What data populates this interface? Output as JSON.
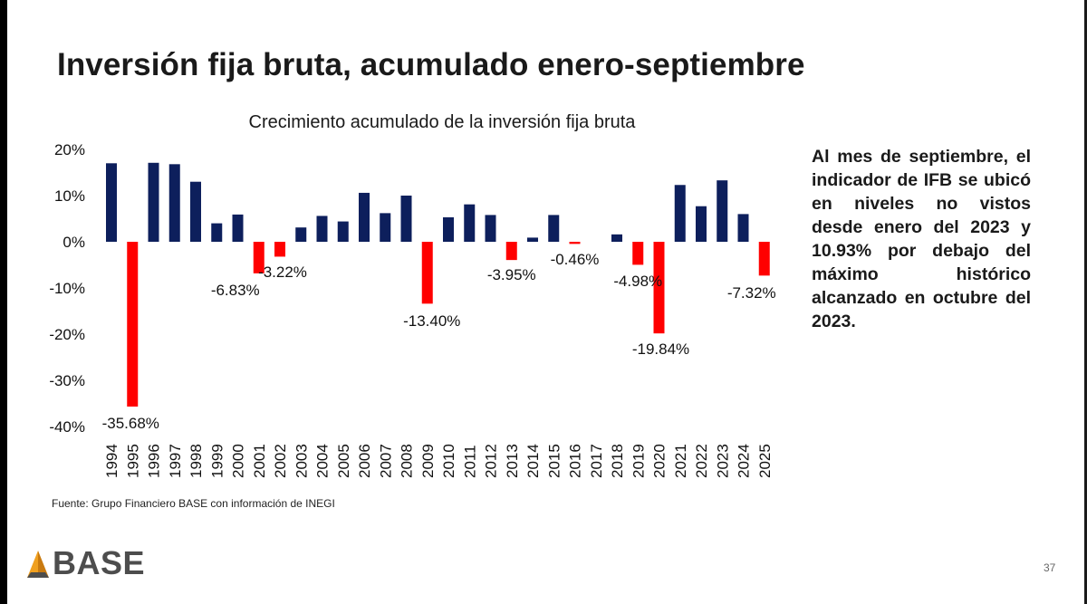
{
  "slide": {
    "title": "Inversión fija bruta, acumulado enero-septiembre",
    "note": "Al mes de septiembre, el indicador de IFB se ubicó en niveles no vistos desde enero del 2023 y 10.93% por debajo del máximo histórico alcanzado en octubre del 2023.",
    "source": "Fuente: Grupo Financiero BASE con información de INEGI",
    "logo_text": "BASE",
    "page_number": "37"
  },
  "chart_data": {
    "type": "bar",
    "title": "Crecimiento acumulado de la inversión fija bruta",
    "xlabel": "",
    "ylabel": "",
    "ylim": [
      -40,
      20
    ],
    "yticks": [
      20,
      10,
      0,
      -10,
      -20,
      -30,
      -40
    ],
    "ytick_labels": [
      "20%",
      "10%",
      "0%",
      "-10%",
      "-20%",
      "-30%",
      "-40%"
    ],
    "categories": [
      "1994",
      "1995",
      "1996",
      "1997",
      "1998",
      "1999",
      "2000",
      "2001",
      "2002",
      "2003",
      "2004",
      "2005",
      "2006",
      "2007",
      "2008",
      "2009",
      "2010",
      "2011",
      "2012",
      "2013",
      "2014",
      "2015",
      "2016",
      "2017",
      "2018",
      "2019",
      "2020",
      "2021",
      "2022",
      "2023",
      "2024",
      "2025"
    ],
    "values": [
      17.0,
      -35.68,
      17.1,
      16.8,
      13.0,
      4.0,
      5.9,
      -6.83,
      -3.22,
      3.1,
      5.6,
      4.4,
      10.6,
      6.2,
      10.0,
      -13.4,
      5.3,
      8.1,
      5.8,
      -3.95,
      0.9,
      5.8,
      -0.46,
      0.0,
      1.6,
      -4.98,
      -19.84,
      12.3,
      7.7,
      13.3,
      6.0,
      -7.32
    ],
    "data_labels": [
      "",
      "-35.68%",
      "",
      "",
      "",
      "",
      "",
      "-6.83%",
      "-3.22%",
      "",
      "",
      "",
      "",
      "",
      "",
      "-13.40%",
      "",
      "",
      "",
      "-3.95%",
      "",
      "",
      "-0.46%",
      "",
      "",
      "-4.98%",
      "-19.84%",
      "",
      "",
      "",
      "",
      "-7.32%"
    ],
    "colors": {
      "positive": "#0d1f5c",
      "negative": "#ff0000"
    }
  }
}
